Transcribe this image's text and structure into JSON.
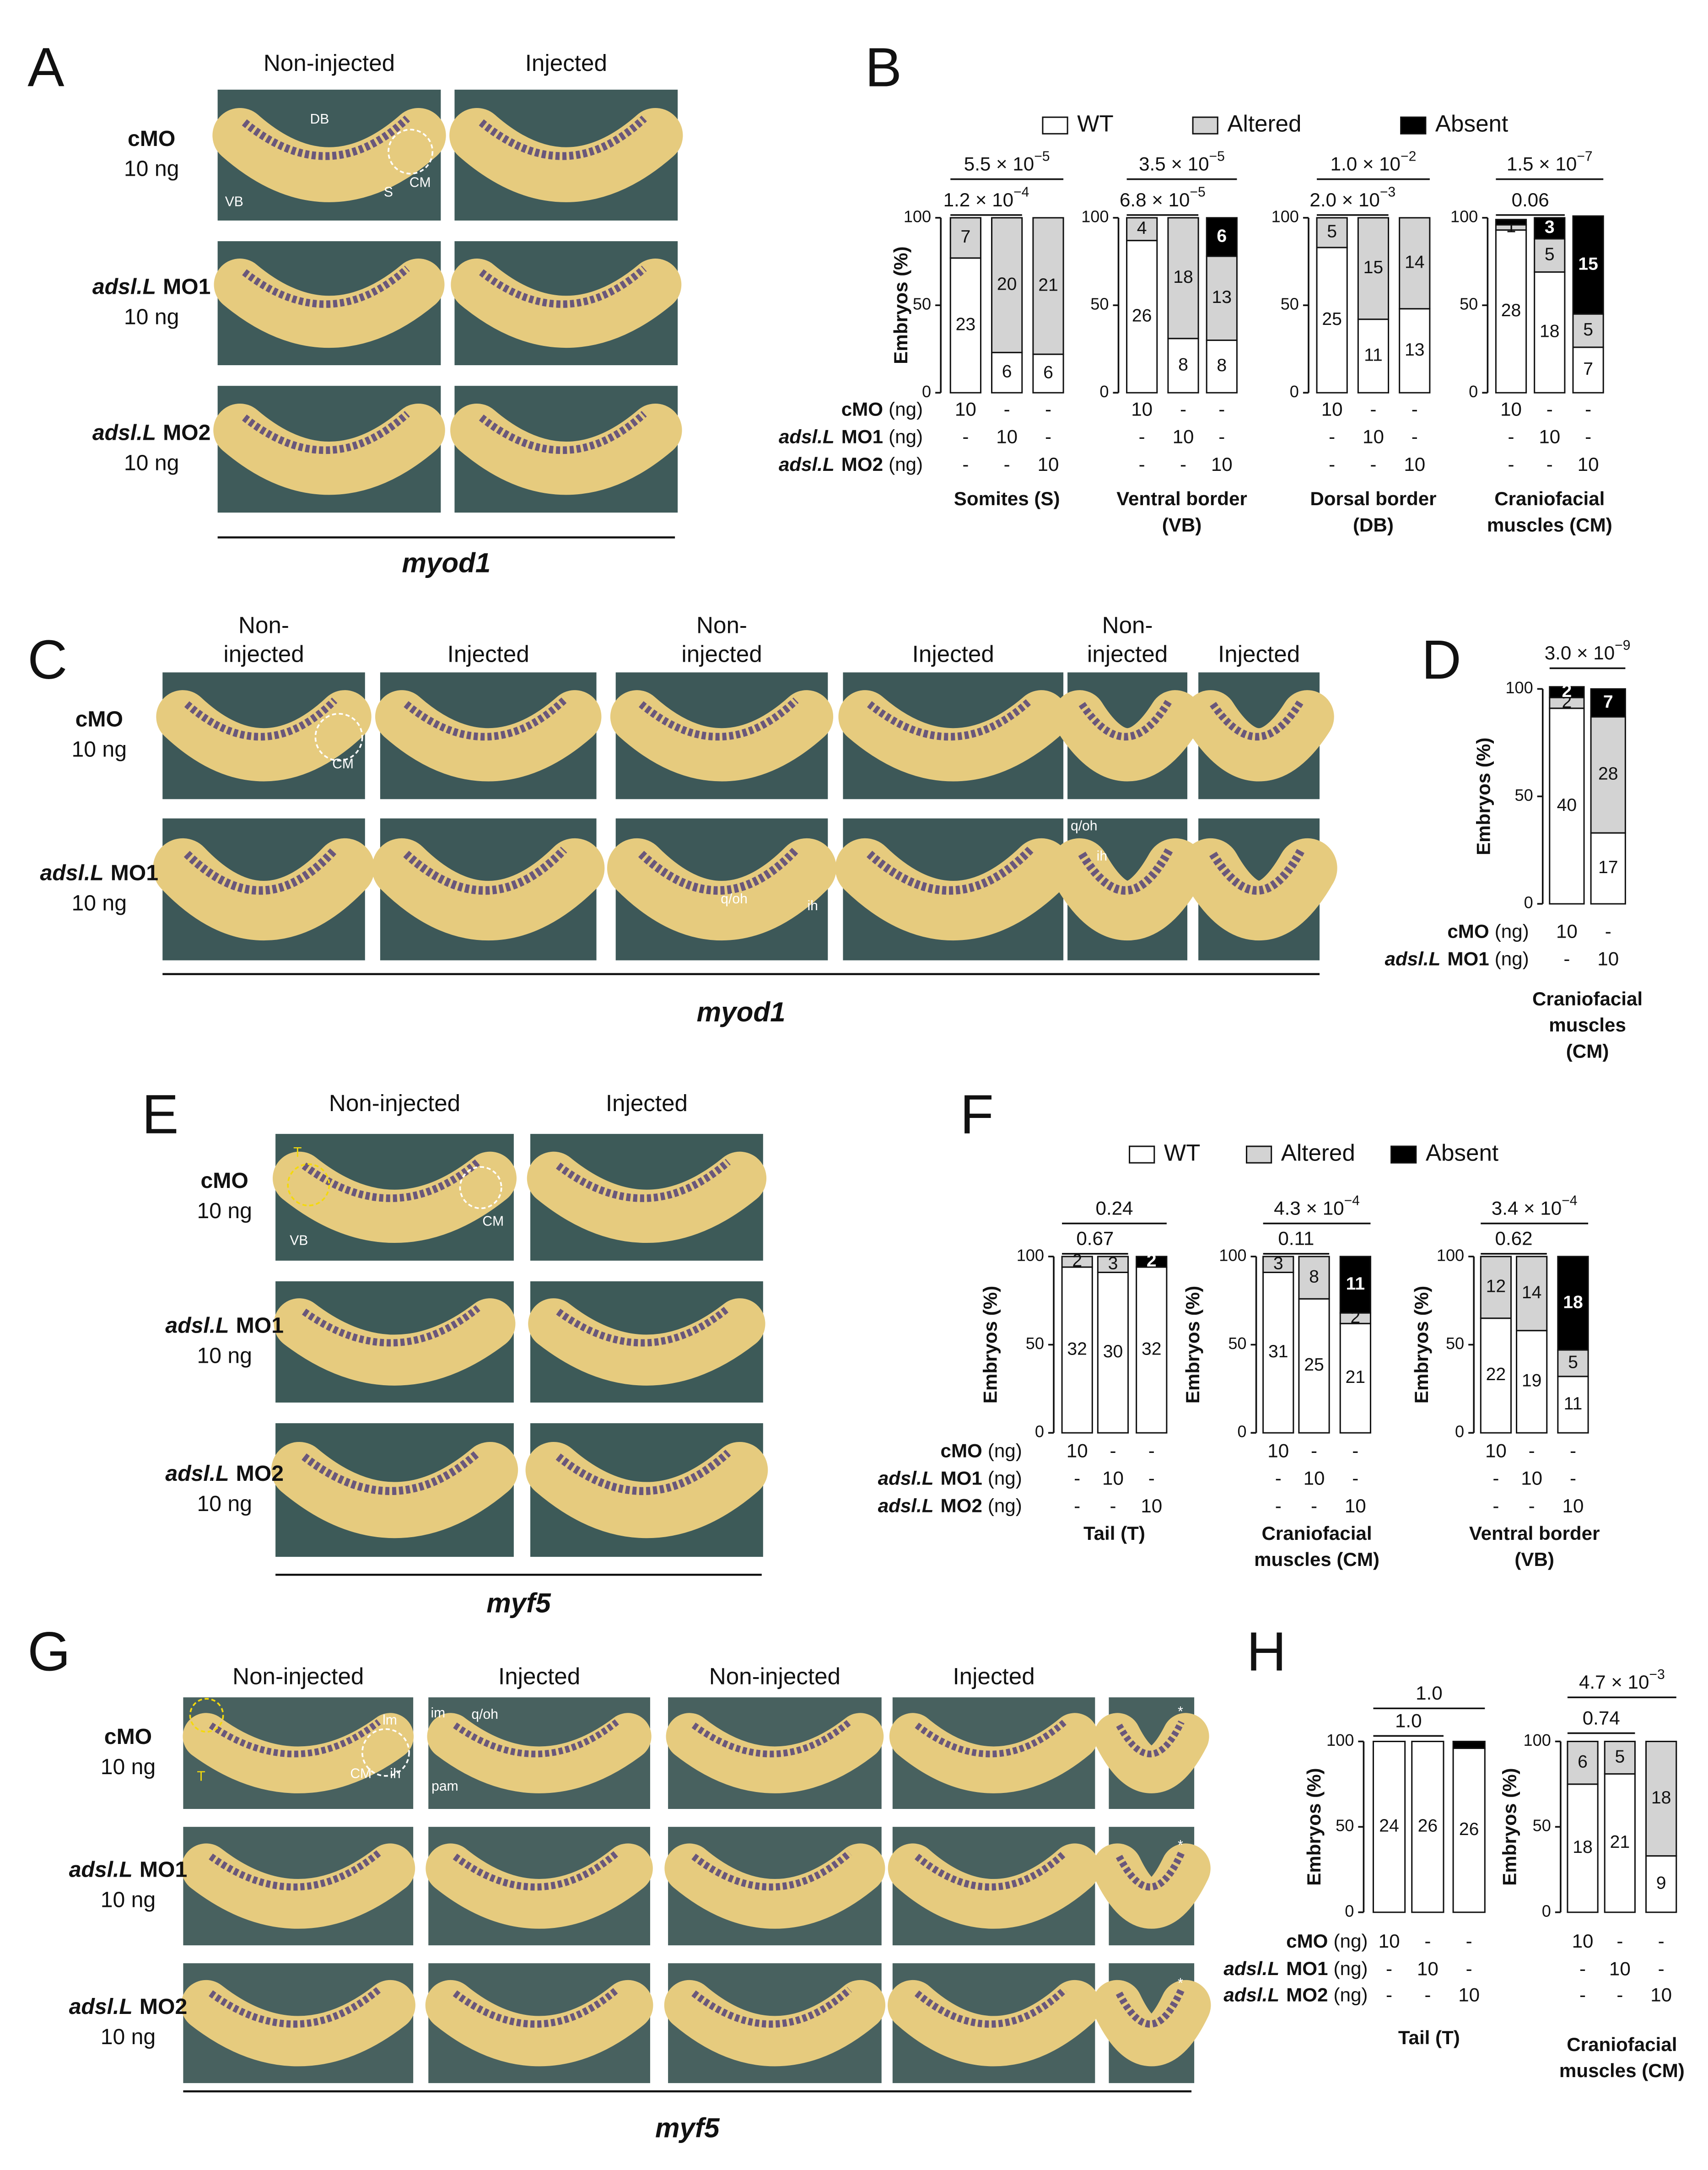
{
  "figure": {
    "A": {
      "letter": "A",
      "columns": [
        [
          "Non-injected"
        ],
        [
          "Injected"
        ]
      ],
      "rows": [
        {
          "label": "cMO",
          "dose": "10 ng"
        },
        {
          "gene": "adsl.L",
          "label": "MO1",
          "dose": "10 ng"
        },
        {
          "gene": "adsl.L",
          "label": "MO2",
          "dose": "10 ng"
        }
      ],
      "annotations": [
        "DB",
        "VB",
        "S",
        "CM"
      ],
      "gene": "myod1"
    },
    "B": {
      "letter": "B"
    },
    "C": {
      "letter": "C",
      "columns": [
        [
          "Non-",
          "injected"
        ],
        [
          "Injected"
        ],
        [
          "Non-",
          "injected"
        ],
        [
          "Injected"
        ],
        [
          "Non-",
          "injected"
        ],
        [
          "Injected"
        ]
      ],
      "rows": [
        {
          "label": "cMO",
          "dose": "10 ng"
        },
        {
          "gene": "adsl.L",
          "label": "MO1",
          "dose": "10 ng"
        }
      ],
      "annotations": [
        "CM",
        "q/oh",
        "ih",
        "q/oh",
        "ih"
      ],
      "gene": "myod1"
    },
    "D": {
      "letter": "D"
    },
    "E": {
      "letter": "E",
      "columns": [
        [
          "Non-injected"
        ],
        [
          "Injected"
        ]
      ],
      "rows": [
        {
          "label": "cMO",
          "dose": "10 ng"
        },
        {
          "gene": "adsl.L",
          "label": "MO1",
          "dose": "10 ng"
        },
        {
          "gene": "adsl.L",
          "label": "MO2",
          "dose": "10 ng"
        }
      ],
      "annotations": [
        "T",
        "VB",
        "CM"
      ],
      "gene": "myf5"
    },
    "F": {
      "letter": "F"
    },
    "G": {
      "letter": "G",
      "columns": [
        [
          "Non-injected"
        ],
        [
          "Injected"
        ],
        [
          "Non-injected"
        ],
        [
          "Injected"
        ]
      ],
      "rows": [
        {
          "label": "cMO",
          "dose": "10 ng"
        },
        {
          "gene": "adsl.L",
          "label": "MO1",
          "dose": "10 ng"
        },
        {
          "gene": "adsl.L",
          "label": "MO2",
          "dose": "10 ng"
        }
      ],
      "annotations": [
        "T",
        "lm",
        "CM",
        "ih",
        "im",
        "q/oh",
        "pam",
        "*",
        "*",
        "*"
      ],
      "gene": "myf5"
    },
    "H": {
      "letter": "H"
    }
  },
  "chart_data": [
    {
      "type": "bar",
      "stacked": true,
      "title": [
        "Somites (S)"
      ],
      "ylabel": "Embryos (%)",
      "ylim": [
        0,
        100
      ],
      "yticks": [
        0,
        50,
        100
      ],
      "series": [
        {
          "name": "WT",
          "color": "#ffffff",
          "values": [
            77,
            23,
            22
          ],
          "counts": [
            23,
            6,
            6
          ]
        },
        {
          "name": "Altered",
          "color": "#d3d3d3",
          "values": [
            23,
            77,
            78
          ],
          "counts": [
            7,
            20,
            21
          ]
        },
        {
          "name": "Absent",
          "color": "#000000",
          "values": [
            0,
            0,
            0
          ],
          "counts": [
            null,
            null,
            null
          ]
        }
      ],
      "pvalues": [
        {
          "base": "5.5  × 10",
          "exp": "−5"
        },
        {
          "base": "1.2 × 10",
          "exp": "−4"
        }
      ],
      "dose_labels": [
        {
          "label": "cMO",
          "unit": "(ng)"
        },
        {
          "gene": "adsl.L",
          "label": "MO1",
          "unit": "(ng)"
        },
        {
          "gene": "adsl.L",
          "label": "MO2",
          "unit": "(ng)"
        }
      ],
      "doses": [
        [
          "10",
          "-",
          "-"
        ],
        [
          "-",
          "10",
          "-"
        ],
        [
          "-",
          "-",
          "10"
        ]
      ]
    },
    {
      "type": "bar",
      "stacked": true,
      "title": [
        "Ventral border",
        "(VB)"
      ],
      "ylim": [
        0,
        100
      ],
      "yticks": [
        0,
        50,
        100
      ],
      "series": [
        {
          "color": "#ffffff",
          "values": [
            87,
            31,
            30
          ],
          "counts": [
            26,
            8,
            8
          ]
        },
        {
          "color": "#d3d3d3",
          "values": [
            13,
            69,
            48
          ],
          "counts": [
            4,
            18,
            13
          ]
        },
        {
          "color": "#000000",
          "values": [
            0,
            0,
            22
          ],
          "counts": [
            null,
            null,
            6
          ]
        }
      ],
      "pvalues": [
        {
          "base": "3.5 × 10",
          "exp": "−5"
        },
        {
          "base": "6.8 × 10",
          "exp": "−5"
        }
      ],
      "doses": [
        [
          "10",
          "-",
          "-"
        ],
        [
          "-",
          "10",
          "-"
        ],
        [
          "-",
          "-",
          "10"
        ]
      ]
    },
    {
      "type": "bar",
      "stacked": true,
      "title": [
        "Dorsal border",
        "(DB)"
      ],
      "ylim": [
        0,
        100
      ],
      "yticks": [
        0,
        50,
        100
      ],
      "series": [
        {
          "color": "#ffffff",
          "values": [
            83,
            42,
            48
          ],
          "counts": [
            25,
            11,
            13
          ]
        },
        {
          "color": "#d3d3d3",
          "values": [
            17,
            58,
            52
          ],
          "counts": [
            5,
            15,
            14
          ]
        },
        {
          "color": "#000000",
          "values": [
            0,
            0,
            0
          ],
          "counts": [
            null,
            null,
            null
          ]
        }
      ],
      "pvalues": [
        {
          "base": "1.0 × 10",
          "exp": "−2"
        },
        {
          "base": "2.0 × 10",
          "exp": "−3"
        }
      ],
      "doses": [
        [
          "10",
          "-",
          "-"
        ],
        [
          "-",
          "10",
          "-"
        ],
        [
          "-",
          "-",
          "10"
        ]
      ]
    },
    {
      "type": "bar",
      "stacked": true,
      "title": [
        "Craniofacial",
        "muscles (CM)"
      ],
      "ylim": [
        0,
        100
      ],
      "yticks": [
        0,
        50,
        100
      ],
      "series": [
        {
          "color": "#ffffff",
          "values": [
            93,
            69,
            26
          ],
          "counts": [
            28,
            18,
            7
          ]
        },
        {
          "color": "#d3d3d3",
          "values": [
            3,
            19,
            19
          ],
          "counts": [
            1,
            5,
            5
          ]
        },
        {
          "color": "#000000",
          "values": [
            3,
            12,
            56
          ],
          "counts": [
            null,
            3,
            15
          ]
        }
      ],
      "pvalues": [
        {
          "base": "1.5 × 10",
          "exp": "−7"
        },
        {
          "base": "0.06"
        }
      ],
      "doses": [
        [
          "10",
          "-",
          "-"
        ],
        [
          "-",
          "10",
          "-"
        ],
        [
          "-",
          "-",
          "10"
        ]
      ]
    },
    {
      "type": "bar",
      "stacked": true,
      "title": [
        "Craniofacial",
        "muscles",
        "(CM)"
      ],
      "ylabel": "Embryos (%)",
      "ylim": [
        0,
        100
      ],
      "yticks": [
        0,
        50,
        100
      ],
      "series": [
        {
          "color": "#ffffff",
          "values": [
            91,
            33
          ],
          "counts": [
            40,
            17
          ]
        },
        {
          "color": "#d3d3d3",
          "values": [
            5,
            54
          ],
          "counts": [
            2,
            28
          ]
        },
        {
          "color": "#000000",
          "values": [
            5,
            13
          ],
          "counts": [
            2,
            7
          ]
        }
      ],
      "pvalues": [
        {
          "base": "3.0 × 10",
          "exp": "−9"
        }
      ],
      "dose_labels": [
        {
          "label": "cMO",
          "unit": "(ng)"
        },
        {
          "gene": "adsl.L",
          "label": "MO1",
          "unit": "(ng)"
        }
      ],
      "doses": [
        [
          "10",
          "-"
        ],
        [
          "-",
          "10"
        ]
      ]
    },
    {
      "type": "bar",
      "stacked": true,
      "title": [
        "Tail (T)"
      ],
      "ylabel": "Embryos (%)",
      "ylim": [
        0,
        100
      ],
      "yticks": [
        0,
        50,
        100
      ],
      "series": [
        {
          "name": "WT",
          "color": "#ffffff",
          "values": [
            94,
            91,
            94
          ],
          "counts": [
            32,
            30,
            32
          ]
        },
        {
          "name": "Altered",
          "color": "#d3d3d3",
          "values": [
            6,
            9,
            0
          ],
          "counts": [
            2,
            3,
            null
          ]
        },
        {
          "name": "Absent",
          "color": "#000000",
          "values": [
            0,
            0,
            6
          ],
          "counts": [
            null,
            null,
            2
          ]
        }
      ],
      "pvalues": [
        {
          "base": "0.24"
        },
        {
          "base": "0.67"
        }
      ],
      "dose_labels": [
        {
          "label": "cMO",
          "unit": "(ng)"
        },
        {
          "gene": "adsl.L",
          "label": "MO1",
          "unit": "(ng)"
        },
        {
          "gene": "adsl.L",
          "label": "MO2",
          "unit": "(ng)"
        }
      ],
      "doses": [
        [
          "10",
          "-",
          "-"
        ],
        [
          "-",
          "10",
          "-"
        ],
        [
          "-",
          "-",
          "10"
        ]
      ]
    },
    {
      "type": "bar",
      "stacked": true,
      "title": [
        "Craniofacial",
        "muscles (CM)"
      ],
      "ylabel": "Embryos (%)",
      "ylim": [
        0,
        100
      ],
      "yticks": [
        0,
        50,
        100
      ],
      "series": [
        {
          "color": "#ffffff",
          "values": [
            91,
            76,
            62
          ],
          "counts": [
            31,
            25,
            21
          ]
        },
        {
          "color": "#d3d3d3",
          "values": [
            9,
            24,
            6
          ],
          "counts": [
            3,
            8,
            2
          ]
        },
        {
          "color": "#000000",
          "values": [
            0,
            0,
            32
          ],
          "counts": [
            null,
            null,
            11
          ]
        }
      ],
      "pvalues": [
        {
          "base": "4.3 × 10",
          "exp": "−4"
        },
        {
          "base": "0.11"
        }
      ],
      "doses": [
        [
          "10",
          "-",
          "-"
        ],
        [
          "-",
          "10",
          "-"
        ],
        [
          "-",
          "-",
          "10"
        ]
      ]
    },
    {
      "type": "bar",
      "stacked": true,
      "title": [
        "Ventral border",
        "(VB)"
      ],
      "ylabel": "Embryos (%)",
      "ylim": [
        0,
        100
      ],
      "yticks": [
        0,
        50,
        100
      ],
      "series": [
        {
          "color": "#ffffff",
          "values": [
            65,
            58,
            32
          ],
          "counts": [
            22,
            19,
            11
          ]
        },
        {
          "color": "#d3d3d3",
          "values": [
            35,
            42,
            15
          ],
          "counts": [
            12,
            14,
            5
          ]
        },
        {
          "color": "#000000",
          "values": [
            0,
            0,
            53
          ],
          "counts": [
            null,
            null,
            18
          ]
        }
      ],
      "pvalues": [
        {
          "base": "3.4 × 10",
          "exp": "−4"
        },
        {
          "base": "0.62"
        }
      ],
      "doses": [
        [
          "10",
          "-",
          "-"
        ],
        [
          "-",
          "10",
          "-"
        ],
        [
          "-",
          "-",
          "10"
        ]
      ]
    },
    {
      "type": "bar",
      "stacked": true,
      "title": [
        "Tail (T)"
      ],
      "ylabel": "Embryos (%)",
      "ylim": [
        0,
        100
      ],
      "yticks": [
        0,
        50,
        100
      ],
      "series": [
        {
          "color": "#ffffff",
          "values": [
            100,
            100,
            96
          ],
          "counts": [
            24,
            26,
            26
          ]
        },
        {
          "color": "#d3d3d3",
          "values": [
            0,
            0,
            0
          ],
          "counts": [
            null,
            null,
            null
          ]
        },
        {
          "color": "#000000",
          "values": [
            0,
            0,
            4
          ],
          "counts": [
            null,
            null,
            null
          ]
        }
      ],
      "pvalues": [
        {
          "base": "1.0"
        },
        {
          "base": "1.0"
        }
      ],
      "dose_labels": [
        {
          "label": "cMO",
          "unit": "(ng)"
        },
        {
          "gene": "adsl.L",
          "label": "MO1",
          "unit": "(ng)"
        },
        {
          "gene": "adsl.L",
          "label": "MO2",
          "unit": "(ng)"
        }
      ],
      "doses": [
        [
          "10",
          "-",
          "-"
        ],
        [
          "-",
          "10",
          "-"
        ],
        [
          "-",
          "-",
          "10"
        ]
      ]
    },
    {
      "type": "bar",
      "stacked": true,
      "title": [
        "Craniofacial",
        "muscles (CM)"
      ],
      "ylabel": "Embryos (%)",
      "ylim": [
        0,
        100
      ],
      "yticks": [
        0,
        50,
        100
      ],
      "series": [
        {
          "color": "#ffffff",
          "values": [
            75,
            81,
            33
          ],
          "counts": [
            18,
            21,
            9
          ]
        },
        {
          "color": "#d3d3d3",
          "values": [
            25,
            19,
            67
          ],
          "counts": [
            6,
            5,
            18
          ]
        },
        {
          "color": "#000000",
          "values": [
            0,
            0,
            0
          ],
          "counts": [
            null,
            null,
            null
          ]
        }
      ],
      "pvalues": [
        {
          "base": "4.7 × 10",
          "exp": "−3"
        },
        {
          "base": "0.74"
        }
      ],
      "doses": [
        [
          "10",
          "-",
          "-"
        ],
        [
          "-",
          "10",
          "-"
        ],
        [
          "-",
          "-",
          "10"
        ]
      ]
    }
  ]
}
